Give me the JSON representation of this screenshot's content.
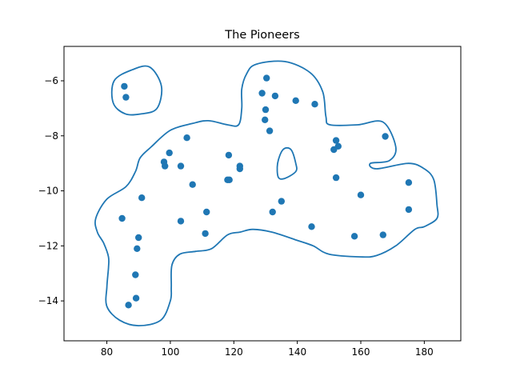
{
  "chart_data": {
    "type": "scatter",
    "title": "The Pioneers",
    "xlabel": "",
    "ylabel": "",
    "xlim": [
      66.5,
      191.5
    ],
    "ylim": [
      -15.45,
      -4.75
    ],
    "x_ticks": [
      80,
      100,
      120,
      140,
      160,
      180
    ],
    "y_ticks": [
      -14,
      -12,
      -10,
      -8,
      -6
    ],
    "x_tick_labels": [
      "80",
      "100",
      "120",
      "140",
      "160",
      "180"
    ],
    "y_tick_labels": [
      "−14",
      "−12",
      "−10",
      "−8",
      "−6"
    ],
    "grid": false,
    "color": "#1f77b4",
    "points": [
      {
        "x": 85.5,
        "y": -6.2
      },
      {
        "x": 86.0,
        "y": -6.6
      },
      {
        "x": 84.8,
        "y": -11.0
      },
      {
        "x": 90.0,
        "y": -11.7
      },
      {
        "x": 89.5,
        "y": -12.1
      },
      {
        "x": 89.0,
        "y": -13.05
      },
      {
        "x": 89.2,
        "y": -13.9
      },
      {
        "x": 86.8,
        "y": -14.15
      },
      {
        "x": 91.0,
        "y": -10.25
      },
      {
        "x": 98.0,
        "y": -8.95
      },
      {
        "x": 98.3,
        "y": -9.1
      },
      {
        "x": 99.7,
        "y": -8.62
      },
      {
        "x": 103.3,
        "y": -9.1
      },
      {
        "x": 105.2,
        "y": -8.07
      },
      {
        "x": 107.0,
        "y": -9.77
      },
      {
        "x": 103.3,
        "y": -11.1
      },
      {
        "x": 111.4,
        "y": -10.77
      },
      {
        "x": 111.0,
        "y": -11.55
      },
      {
        "x": 118.4,
        "y": -8.7
      },
      {
        "x": 118.0,
        "y": -9.6
      },
      {
        "x": 118.6,
        "y": -9.6
      },
      {
        "x": 121.9,
        "y": -9.1
      },
      {
        "x": 121.9,
        "y": -9.2
      },
      {
        "x": 130.3,
        "y": -5.9
      },
      {
        "x": 128.9,
        "y": -6.45
      },
      {
        "x": 133.0,
        "y": -6.55
      },
      {
        "x": 130.0,
        "y": -7.05
      },
      {
        "x": 129.8,
        "y": -7.42
      },
      {
        "x": 131.3,
        "y": -7.82
      },
      {
        "x": 139.5,
        "y": -6.72
      },
      {
        "x": 145.5,
        "y": -6.85
      },
      {
        "x": 132.2,
        "y": -10.77
      },
      {
        "x": 135.0,
        "y": -10.38
      },
      {
        "x": 144.5,
        "y": -11.3
      },
      {
        "x": 152.2,
        "y": -8.17
      },
      {
        "x": 152.9,
        "y": -8.38
      },
      {
        "x": 151.5,
        "y": -8.5
      },
      {
        "x": 152.2,
        "y": -9.52
      },
      {
        "x": 160.0,
        "y": -10.15
      },
      {
        "x": 158.0,
        "y": -11.65
      },
      {
        "x": 167.0,
        "y": -11.6
      },
      {
        "x": 167.7,
        "y": -8.02
      },
      {
        "x": 175.1,
        "y": -9.7
      },
      {
        "x": 175.1,
        "y": -10.68
      }
    ],
    "contours": [
      [
        [
          85.8,
          -7.2
        ],
        [
          82.0,
          -6.8
        ],
        [
          82.3,
          -6.0
        ],
        [
          88.0,
          -5.6
        ],
        [
          93.5,
          -5.5
        ],
        [
          97.2,
          -6.2
        ],
        [
          95.8,
          -7.0
        ],
        [
          91.0,
          -7.2
        ],
        [
          85.8,
          -7.2
        ]
      ],
      [
        [
          138.0,
          -8.5
        ],
        [
          139.5,
          -9.0
        ],
        [
          139.5,
          -9.3
        ],
        [
          136.0,
          -9.55
        ],
        [
          134.0,
          -9.5
        ],
        [
          133.8,
          -9.0
        ],
        [
          135.5,
          -8.5
        ],
        [
          138.0,
          -8.5
        ]
      ],
      [
        [
          127.0,
          -5.4
        ],
        [
          136.0,
          -5.3
        ],
        [
          144.0,
          -5.7
        ],
        [
          148.0,
          -6.4
        ],
        [
          149.0,
          -7.3
        ],
        [
          150.3,
          -7.6
        ],
        [
          159.0,
          -7.6
        ],
        [
          167.0,
          -7.5
        ],
        [
          171.0,
          -8.4
        ],
        [
          169.0,
          -8.9
        ],
        [
          163.0,
          -9.0
        ],
        [
          165.0,
          -9.2
        ],
        [
          175.0,
          -9.0
        ],
        [
          180.0,
          -9.2
        ],
        [
          183.0,
          -9.6
        ],
        [
          184.0,
          -10.5
        ],
        [
          184.0,
          -11.0
        ],
        [
          180.0,
          -11.3
        ],
        [
          177.0,
          -11.4
        ],
        [
          171.0,
          -12.0
        ],
        [
          165.0,
          -12.35
        ],
        [
          160.0,
          -12.4
        ],
        [
          150.0,
          -12.3
        ],
        [
          145.0,
          -12.0
        ],
        [
          140.0,
          -11.8
        ],
        [
          132.0,
          -11.5
        ],
        [
          126.0,
          -11.4
        ],
        [
          122.0,
          -11.5
        ],
        [
          118.0,
          -11.6
        ],
        [
          113.0,
          -12.1
        ],
        [
          108.0,
          -12.2
        ],
        [
          103.0,
          -12.3
        ],
        [
          100.5,
          -12.7
        ],
        [
          100.3,
          -13.5
        ],
        [
          100.0,
          -14.0
        ],
        [
          97.0,
          -14.7
        ],
        [
          90.0,
          -14.9
        ],
        [
          84.0,
          -14.7
        ],
        [
          80.0,
          -14.2
        ],
        [
          80.0,
          -13.5
        ],
        [
          80.5,
          -12.8
        ],
        [
          80.5,
          -12.4
        ],
        [
          79.0,
          -11.9
        ],
        [
          77.0,
          -11.5
        ],
        [
          76.5,
          -11.0
        ],
        [
          80.0,
          -10.3
        ],
        [
          86.0,
          -9.85
        ],
        [
          89.0,
          -9.3
        ],
        [
          90.5,
          -8.8
        ],
        [
          94.0,
          -8.4
        ],
        [
          100.0,
          -7.8
        ],
        [
          107.0,
          -7.55
        ],
        [
          112.0,
          -7.45
        ],
        [
          118.0,
          -7.6
        ],
        [
          121.5,
          -7.6
        ],
        [
          122.5,
          -7.0
        ],
        [
          122.5,
          -6.3
        ],
        [
          124.0,
          -5.75
        ],
        [
          127.0,
          -5.4
        ]
      ]
    ]
  }
}
